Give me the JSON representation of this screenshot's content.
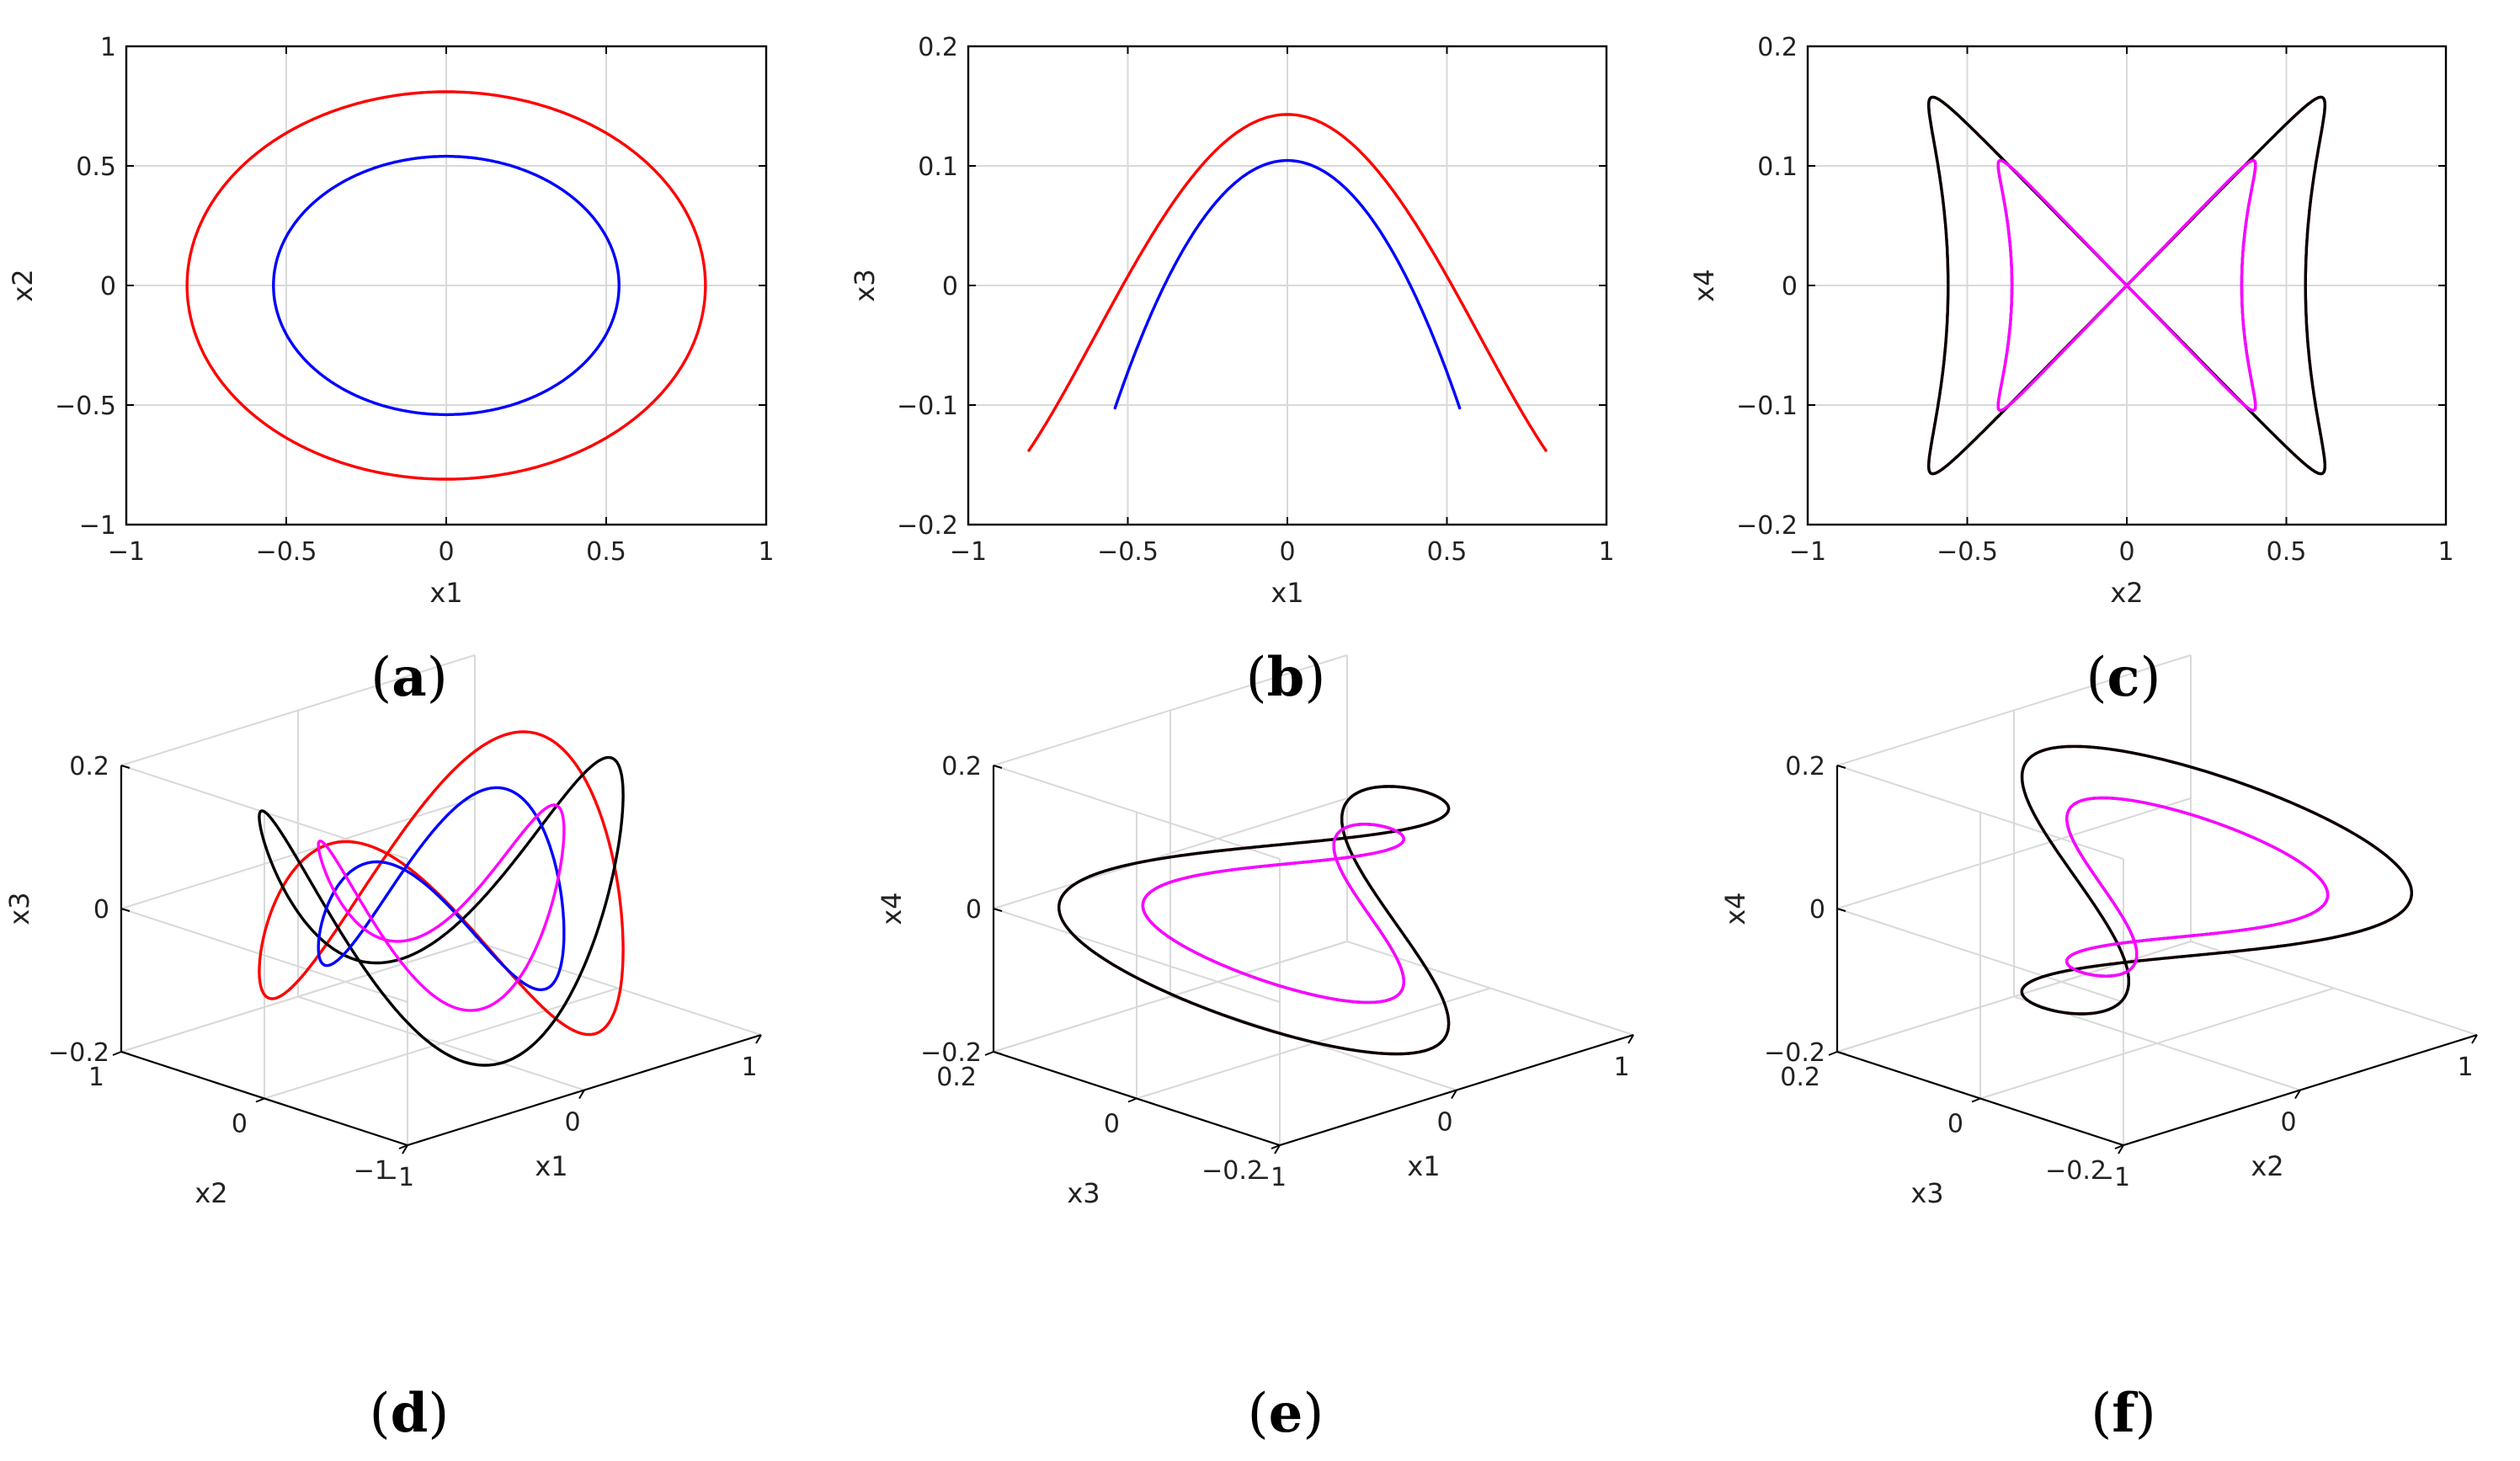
{
  "figure": {
    "captions": [
      "(a)",
      "(b)",
      "(c)",
      "(d)",
      "(e)",
      "(f)"
    ],
    "colors": {
      "red": "#ff0000",
      "blue": "#0000ff",
      "magenta": "#ff00ff",
      "black": "#000000"
    }
  },
  "chart_data": [
    {
      "id": "a",
      "type": "line",
      "caption": "(a)",
      "xlabel": "x1",
      "ylabel": "x2",
      "xlim": [
        -1,
        1
      ],
      "ylim": [
        -1,
        1
      ],
      "xticks": [
        "−1",
        "−0.5",
        "0",
        "0.5",
        "1"
      ],
      "yticks": [
        "−1",
        "−0.5",
        "0",
        "0.5",
        "1"
      ],
      "grid": true,
      "series": [
        {
          "name": "orbit red",
          "color": "#ff0000",
          "param": {
            "x": [
              [
                0.81,
                1
              ]
            ],
            "y": [
              [
                0.81,
                1,
                1.5708
              ]
            ]
          }
        },
        {
          "name": "orbit blue",
          "color": "#0000ff",
          "param": {
            "x": [
              [
                0.54,
                1
              ]
            ],
            "y": [
              [
                0.54,
                1,
                1.5708
              ]
            ]
          }
        }
      ]
    },
    {
      "id": "b",
      "type": "line",
      "caption": "(b)",
      "xlabel": "x1",
      "ylabel": "x3",
      "xlim": [
        -1,
        1
      ],
      "ylim": [
        -0.2,
        0.2
      ],
      "xticks": [
        "−1",
        "−0.5",
        "0",
        "0.5",
        "1"
      ],
      "yticks": [
        "−0.2",
        "−0.1",
        "0",
        "0.1",
        "0.2"
      ],
      "grid": true,
      "series": [
        {
          "name": "orbit red",
          "color": "#ff0000",
          "param": {
            "x": [
              [
                0.81,
                1
              ]
            ],
            "y": [
              [
                -0.0125,
                0,
                0
              ],
              [
                0.1405,
                2,
                3.1416
              ],
              [
                0.015,
                4,
                0
              ]
            ]
          }
        },
        {
          "name": "orbit blue",
          "color": "#0000ff",
          "param": {
            "x": [
              [
                0.54,
                1
              ]
            ],
            "y": [
              [
                0.0015,
                0,
                0
              ],
              [
                0.1035,
                2,
                3.1416
              ],
              [
                -0.0005,
                4,
                0
              ]
            ]
          }
        }
      ]
    },
    {
      "id": "c",
      "type": "line",
      "caption": "(c)",
      "xlabel": "x2",
      "ylabel": "x4",
      "xlim": [
        -1,
        1
      ],
      "ylim": [
        -0.2,
        0.2
      ],
      "xticks": [
        "−1",
        "−0.5",
        "0",
        "0.5",
        "1"
      ],
      "yticks": [
        "−0.2",
        "−0.1",
        "0",
        "0.1",
        "0.2"
      ],
      "grid": true,
      "series": [
        {
          "name": "orbit red",
          "color": "#ff0000",
          "param": {
            "x": [
              [
                0.71,
                1,
                0
              ],
              [
                0.15,
                3,
                3.1416
              ]
            ],
            "y": [
              [
                0.1575,
                2,
                1.5708
              ]
            ]
          }
        },
        {
          "name": "orbit black",
          "color": "#000000",
          "param": {
            "x": [
              [
                0.71,
                1,
                3.1416
              ],
              [
                0.15,
                3,
                0
              ]
            ],
            "y": [
              [
                0.1575,
                2,
                1.5708
              ]
            ]
          }
        },
        {
          "name": "orbit blue",
          "color": "#0000ff",
          "param": {
            "x": [
              [
                0.46,
                1,
                0
              ],
              [
                0.1,
                3,
                3.1416
              ]
            ],
            "y": [
              [
                0.1045,
                2,
                1.5708
              ]
            ]
          }
        },
        {
          "name": "orbit magenta",
          "color": "#ff00ff",
          "param": {
            "x": [
              [
                0.46,
                1,
                3.1416
              ],
              [
                0.1,
                3,
                0
              ]
            ],
            "y": [
              [
                0.1045,
                2,
                1.5708
              ]
            ]
          }
        }
      ]
    },
    {
      "id": "d",
      "type": "line",
      "caption": "(d)",
      "xlabel": "x1",
      "ylabel": "x2",
      "zlabel": "x3",
      "xlim": [
        -1,
        1
      ],
      "ylim": [
        -1,
        1
      ],
      "zlim": [
        -0.2,
        0.2
      ],
      "xticks": [
        "−1",
        "0",
        "1"
      ],
      "yticks": [
        "−1",
        "0",
        "1"
      ],
      "zticks": [
        "−0.2",
        "0",
        "0.2"
      ],
      "grid": true,
      "series": [
        {
          "name": "orbit red",
          "color": "#ff0000",
          "param": {
            "x": [
              [
                0.8,
                1,
                0.4
              ]
            ],
            "y": [
              [
                0.8,
                1,
                1.97
              ]
            ],
            "z": [
              [
                0.158,
                2,
                1.5708
              ]
            ]
          }
        },
        {
          "name": "orbit black",
          "color": "#000000",
          "param": {
            "x": [
              [
                0.8,
                1,
                0.4
              ]
            ],
            "y": [
              [
                0.8,
                1,
                -1.17
              ]
            ],
            "z": [
              [
                0.158,
                2,
                1.5708
              ]
            ]
          }
        },
        {
          "name": "orbit blue",
          "color": "#0000ff",
          "param": {
            "x": [
              [
                0.54,
                1,
                0.4
              ]
            ],
            "y": [
              [
                0.54,
                1,
                1.97
              ]
            ],
            "z": [
              [
                0.105,
                2,
                1.5708
              ]
            ]
          }
        },
        {
          "name": "orbit magenta",
          "color": "#ff00ff",
          "param": {
            "x": [
              [
                0.54,
                1,
                0.4
              ]
            ],
            "y": [
              [
                0.54,
                1,
                -1.17
              ]
            ],
            "z": [
              [
                0.105,
                2,
                1.5708
              ]
            ]
          }
        }
      ]
    },
    {
      "id": "e",
      "type": "line",
      "caption": "(e)",
      "xlabel": "x1",
      "ylabel": "x3",
      "zlabel": "x4",
      "xlim": [
        -1,
        1
      ],
      "ylim": [
        -0.2,
        0.2
      ],
      "zlim": [
        -0.2,
        0.2
      ],
      "xticks": [
        "−1",
        "0",
        "1"
      ],
      "yticks": [
        "−0.2",
        "0",
        "0.2"
      ],
      "zticks": [
        "−0.2",
        "0",
        "0.2"
      ],
      "grid": true,
      "series": [
        {
          "name": "orbit red",
          "color": "#ff0000",
          "param": {
            "x": [
              [
                0.8,
                1,
                0.4
              ]
            ],
            "y": [
              [
                0.158,
                2,
                0.8
              ]
            ],
            "z": [
              [
                0.158,
                1,
                1.97
              ]
            ]
          }
        },
        {
          "name": "orbit black",
          "color": "#000000",
          "param": {
            "x": [
              [
                0.8,
                1,
                0.4
              ]
            ],
            "y": [
              [
                0.158,
                2,
                0.8
              ]
            ],
            "z": [
              [
                0.158,
                1,
                -1.17
              ]
            ]
          }
        },
        {
          "name": "orbit blue",
          "color": "#0000ff",
          "param": {
            "x": [
              [
                0.54,
                1,
                0.4
              ]
            ],
            "y": [
              [
                0.105,
                2,
                0.8
              ]
            ],
            "z": [
              [
                0.105,
                1,
                1.97
              ]
            ]
          }
        },
        {
          "name": "orbit magenta",
          "color": "#ff00ff",
          "param": {
            "x": [
              [
                0.54,
                1,
                0.4
              ]
            ],
            "y": [
              [
                0.105,
                2,
                0.8
              ]
            ],
            "z": [
              [
                0.105,
                1,
                -1.17
              ]
            ]
          }
        }
      ]
    },
    {
      "id": "f",
      "type": "line",
      "caption": "(f)",
      "xlabel": "x2",
      "ylabel": "x3",
      "zlabel": "x4",
      "xlim": [
        -1,
        1
      ],
      "ylim": [
        -0.2,
        0.2
      ],
      "zlim": [
        -0.2,
        0.2
      ],
      "xticks": [
        "−1",
        "0",
        "1"
      ],
      "yticks": [
        "−0.2",
        "0",
        "0.2"
      ],
      "zticks": [
        "−0.2",
        "0",
        "0.2"
      ],
      "grid": true,
      "series": [
        {
          "name": "orbit red",
          "color": "#ff0000",
          "param": {
            "x": [
              [
                0.8,
                1,
                1.97
              ]
            ],
            "y": [
              [
                0.158,
                2,
                0.8
              ]
            ],
            "z": [
              [
                0.158,
                1,
                0.4
              ]
            ]
          }
        },
        {
          "name": "orbit black",
          "color": "#000000",
          "param": {
            "x": [
              [
                0.8,
                1,
                -1.17
              ]
            ],
            "y": [
              [
                0.158,
                2,
                0.8
              ]
            ],
            "z": [
              [
                0.158,
                1,
                0.4
              ]
            ]
          }
        },
        {
          "name": "orbit blue",
          "color": "#0000ff",
          "param": {
            "x": [
              [
                0.54,
                1,
                1.97
              ]
            ],
            "y": [
              [
                0.105,
                2,
                0.8
              ]
            ],
            "z": [
              [
                0.105,
                1,
                0.4
              ]
            ]
          }
        },
        {
          "name": "orbit magenta",
          "color": "#ff00ff",
          "param": {
            "x": [
              [
                0.54,
                1,
                -1.17
              ]
            ],
            "y": [
              [
                0.105,
                2,
                0.8
              ]
            ],
            "z": [
              [
                0.105,
                1,
                0.4
              ]
            ]
          }
        }
      ]
    }
  ]
}
